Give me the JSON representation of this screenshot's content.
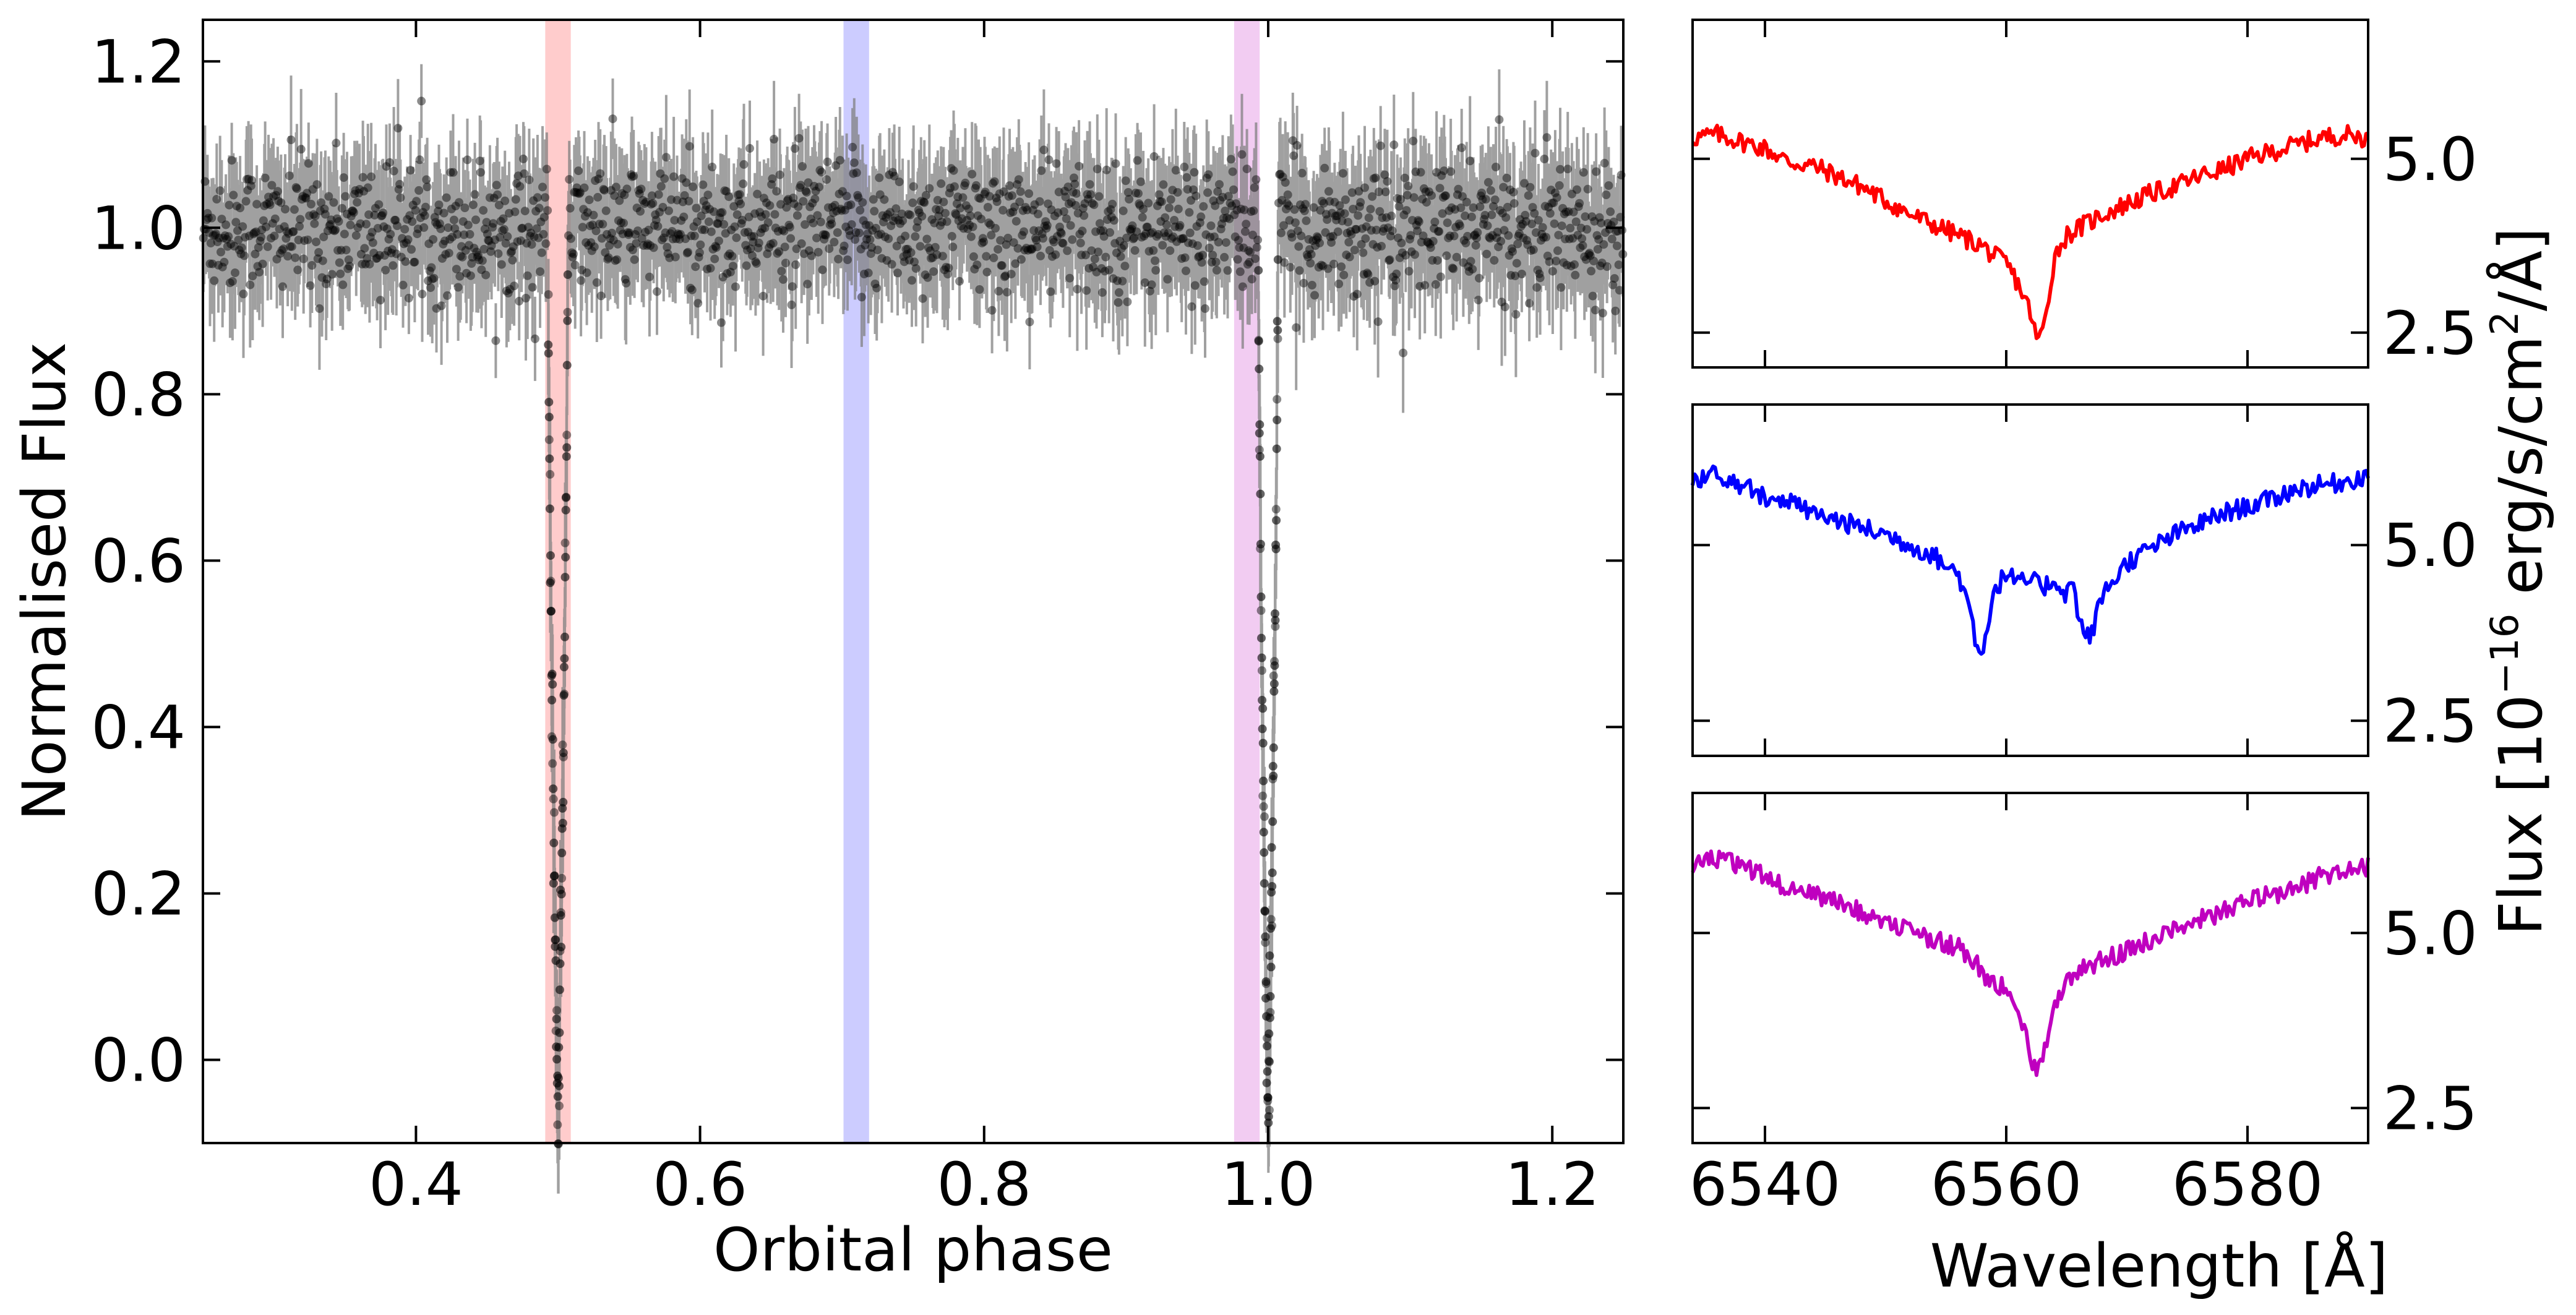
{
  "chart_data": [
    {
      "type": "scatter",
      "title": "",
      "xlabel": "Orbital phase",
      "ylabel": "Normalised Flux",
      "xlim": [
        0.25,
        1.25
      ],
      "ylim": [
        -0.1,
        1.25
      ],
      "xticks": [
        "0.4",
        "0.6",
        "0.8",
        "1.0",
        "1.2"
      ],
      "yticks": [
        "0.0",
        "0.2",
        "0.4",
        "0.6",
        "0.8",
        "1.0",
        "1.2"
      ],
      "grid": false,
      "marker_color": "#000000",
      "errorbar_color": "#808080",
      "baseline_flux": 1.0,
      "scatter_sigma": 0.04,
      "typical_error": 0.06,
      "eclipses": [
        {
          "center": 0.5,
          "half_width": 0.007,
          "min_flux": -0.08
        },
        {
          "center": 1.0,
          "half_width": 0.007,
          "min_flux": -0.08
        }
      ],
      "highlight_bands": [
        {
          "x": [
            0.491,
            0.509
          ],
          "color": "#ff0000",
          "opacity": 0.2
        },
        {
          "x": [
            0.701,
            0.719
          ],
          "color": "#0000ff",
          "opacity": 0.2
        },
        {
          "x": [
            0.976,
            0.994
          ],
          "color": "#bf00bf",
          "opacity": 0.2
        }
      ]
    },
    {
      "type": "line",
      "xlabel": "Wavelength [Å]",
      "ylabel": "Flux [10$^{-16}$ erg/s/cm$^{2}$/Å]",
      "ylabel_parts": {
        "pre": "Flux [10",
        "exp1": "−16",
        "mid": " erg/s/cm",
        "exp2": "2",
        "post": "/Å]"
      },
      "xlim": [
        6534,
        6590
      ],
      "xticks": [
        "6540",
        "6560",
        "6580"
      ],
      "yticks": [
        "2.5",
        "5.0"
      ],
      "grid": false,
      "panels": [
        {
          "color": "#ff0000",
          "ylim": [
            2.0,
            7.0
          ],
          "series": {
            "x": [
              6534,
              6536,
              6538,
              6540,
              6542,
              6544,
              6546,
              6548,
              6550,
              6552,
              6554,
              6556,
              6558,
              6559,
              6560,
              6561,
              6562,
              6562.5,
              6563,
              6563.5,
              6564,
              6565,
              6566,
              6568,
              6570,
              6572,
              6574,
              6576,
              6578,
              6580,
              6582,
              6584,
              6586,
              6588,
              6590
            ],
            "y": [
              5.3,
              5.35,
              5.25,
              5.15,
              4.95,
              4.9,
              4.75,
              4.6,
              4.4,
              4.2,
              4.05,
              3.9,
              3.75,
              3.6,
              3.5,
              3.2,
              2.8,
              2.4,
              2.5,
              3.0,
              3.6,
              3.9,
              4.0,
              4.2,
              4.35,
              4.5,
              4.6,
              4.75,
              4.85,
              5.0,
              5.1,
              5.2,
              5.3,
              5.35,
              5.3
            ]
          }
        },
        {
          "color": "#0000ff",
          "ylim": [
            2.0,
            7.0
          ],
          "series": {
            "x": [
              6534,
              6536,
              6538,
              6540,
              6542,
              6544,
              6546,
              6548,
              6550,
              6552,
              6554,
              6555,
              6556,
              6557,
              6557.5,
              6558,
              6558.5,
              6559,
              6560,
              6561,
              6562,
              6563,
              6564,
              6565,
              6565.5,
              6566,
              6566.5,
              6567,
              6568,
              6570,
              6572,
              6574,
              6576,
              6578,
              6580,
              6582,
              6584,
              6586,
              6588,
              6590
            ],
            "y": [
              5.95,
              6.0,
              5.85,
              5.7,
              5.6,
              5.45,
              5.35,
              5.25,
              5.15,
              5.0,
              4.85,
              4.7,
              4.6,
              4.1,
              3.6,
              3.5,
              3.9,
              4.35,
              4.6,
              4.45,
              4.5,
              4.4,
              4.5,
              4.3,
              4.5,
              4.0,
              3.7,
              3.7,
              4.3,
              4.75,
              4.95,
              5.15,
              5.3,
              5.45,
              5.55,
              5.65,
              5.8,
              5.85,
              5.9,
              6.0
            ]
          }
        },
        {
          "color": "#bf00bf",
          "ylim": [
            2.0,
            7.0
          ],
          "series": {
            "x": [
              6534,
              6536,
              6538,
              6540,
              6542,
              6544,
              6546,
              6548,
              6550,
              6552,
              6554,
              6556,
              6557.5,
              6558,
              6559,
              6560,
              6561,
              6561.5,
              6562,
              6562.5,
              6563,
              6563.5,
              6564,
              6565,
              6566,
              6568,
              6570,
              6572,
              6574,
              6576,
              6578,
              6580,
              6582,
              6584,
              6586,
              6588,
              6590
            ],
            "y": [
              6.0,
              6.05,
              5.95,
              5.8,
              5.65,
              5.55,
              5.45,
              5.3,
              5.2,
              5.05,
              4.9,
              4.8,
              4.6,
              4.4,
              4.3,
              4.2,
              3.9,
              3.6,
              3.2,
              3.1,
              3.25,
              3.6,
              4.0,
              4.3,
              4.5,
              4.6,
              4.75,
              4.9,
              5.05,
              5.2,
              5.3,
              5.45,
              5.55,
              5.65,
              5.8,
              5.9,
              5.95
            ]
          }
        }
      ]
    }
  ]
}
